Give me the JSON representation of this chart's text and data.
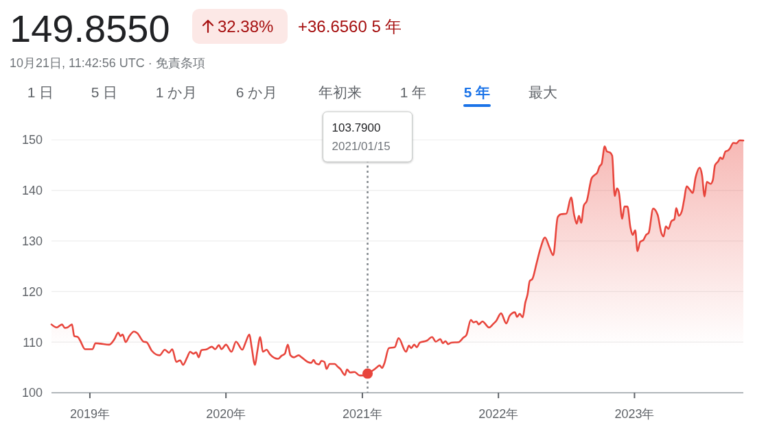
{
  "chart_data": {
    "type": "area",
    "title": "149.8550",
    "subtitle": "10月21日, 11:42:56 UTC · 免責条項",
    "annotations": [
      "32.38%",
      "+36.6560 5 年",
      "1 日",
      "5 日",
      "1 か月",
      "6 か月",
      "年初来",
      "1 年",
      "5 年",
      "最大",
      "103.7900",
      "2021/01/15"
    ],
    "xlim": [
      "2018-09-20",
      "2023-10-20"
    ],
    "xticks": [
      {
        "value": "2019-01-01",
        "label": "2019年"
      },
      {
        "value": "2020-01-01",
        "label": "2020年"
      },
      {
        "value": "2021-01-01",
        "label": "2021年"
      },
      {
        "value": "2022-01-01",
        "label": "2022年"
      },
      {
        "value": "2023-01-01",
        "label": "2023年"
      }
    ],
    "ylim": [
      100,
      150
    ],
    "yticks": [
      100,
      110,
      120,
      130,
      140,
      150
    ],
    "grid": "y",
    "ref_lines": [
      {
        "axis": "x",
        "value": "2021-01-15",
        "color": "#80868b",
        "line_style": "dotted"
      }
    ],
    "series": [
      {
        "color": "#e8453c",
        "x": [
          "2018-09-20",
          "2018-10-04",
          "2018-10-18",
          "2018-10-26",
          "2018-11-02",
          "2018-11-14",
          "2018-11-20",
          "2018-11-30",
          "2018-12-06",
          "2018-12-19",
          "2019-01-08",
          "2019-01-16",
          "2019-01-29",
          "2019-02-22",
          "2019-03-08",
          "2019-03-18",
          "2019-03-24",
          "2019-03-30",
          "2019-04-07",
          "2019-04-17",
          "2019-04-29",
          "2019-05-08",
          "2019-05-25",
          "2019-06-02",
          "2019-06-16",
          "2019-07-07",
          "2019-07-21",
          "2019-08-01",
          "2019-08-10",
          "2019-08-21",
          "2019-08-31",
          "2019-09-08",
          "2019-09-19",
          "2019-09-27",
          "2019-10-06",
          "2019-10-13",
          "2019-10-20",
          "2019-10-27",
          "2019-11-11",
          "2019-11-24",
          "2019-12-03",
          "2019-12-13",
          "2019-12-20",
          "2020-01-01",
          "2020-01-16",
          "2020-01-28",
          "2020-02-14",
          "2020-02-22",
          "2020-03-04",
          "2020-03-10",
          "2020-03-19",
          "2020-03-25",
          "2020-04-02",
          "2020-04-09",
          "2020-04-19",
          "2020-04-28",
          "2020-05-20",
          "2020-05-29",
          "2020-06-07",
          "2020-06-15",
          "2020-06-22",
          "2020-07-01",
          "2020-07-14",
          "2020-07-22",
          "2020-08-07",
          "2020-08-17",
          "2020-08-23",
          "2020-08-29",
          "2020-09-07",
          "2020-09-13",
          "2020-09-21",
          "2020-09-27",
          "2020-10-05",
          "2020-10-19",
          "2020-10-26",
          "2020-11-03",
          "2020-11-15",
          "2020-11-21",
          "2020-11-29",
          "2020-12-11",
          "2020-12-25",
          "2021-01-05",
          "2021-01-15",
          "2021-01-31",
          "2021-02-07",
          "2021-02-16",
          "2021-02-23",
          "2021-03-01",
          "2021-03-13",
          "2021-03-29",
          "2021-04-08",
          "2021-04-28",
          "2021-05-06",
          "2021-05-12",
          "2021-05-20",
          "2021-05-27",
          "2021-06-04",
          "2021-06-23",
          "2021-07-07",
          "2021-07-17",
          "2021-07-29",
          "2021-08-05",
          "2021-08-12",
          "2021-08-19",
          "2021-08-27",
          "2021-09-16",
          "2021-09-29",
          "2021-10-07",
          "2021-10-19",
          "2021-10-26",
          "2021-11-03",
          "2021-11-09",
          "2021-11-19",
          "2021-12-07",
          "2021-12-18",
          "2021-12-26",
          "2022-01-08",
          "2022-01-22",
          "2022-01-31",
          "2022-02-14",
          "2022-02-20",
          "2022-02-27",
          "2022-03-07",
          "2022-03-14",
          "2022-03-20",
          "2022-03-26",
          "2022-04-02",
          "2022-04-13",
          "2022-04-24",
          "2022-05-06",
          "2022-05-17",
          "2022-05-28",
          "2022-06-09",
          "2022-06-18",
          "2022-07-02",
          "2022-07-15",
          "2022-07-23",
          "2022-07-30",
          "2022-08-05",
          "2022-08-11",
          "2022-08-18",
          "2022-08-26",
          "2022-09-08",
          "2022-09-17",
          "2022-09-23",
          "2022-09-29",
          "2022-10-05",
          "2022-10-13",
          "2022-10-19",
          "2022-10-27",
          "2022-11-02",
          "2022-11-09",
          "2022-11-15",
          "2022-11-20",
          "2022-11-29",
          "2022-12-05",
          "2022-12-13",
          "2022-12-21",
          "2022-12-27",
          "2023-01-03",
          "2023-01-09",
          "2023-01-16",
          "2023-01-25",
          "2023-02-01",
          "2023-02-08",
          "2023-02-20",
          "2023-03-04",
          "2023-03-14",
          "2023-03-20",
          "2023-03-26",
          "2023-04-02",
          "2023-04-10",
          "2023-04-18",
          "2023-04-23",
          "2023-04-30",
          "2023-05-08",
          "2023-05-14",
          "2023-05-21",
          "2023-05-29",
          "2023-06-06",
          "2023-06-14",
          "2023-06-25",
          "2023-07-01",
          "2023-07-08",
          "2023-07-14",
          "2023-07-24",
          "2023-07-30",
          "2023-08-05",
          "2023-08-14",
          "2023-08-19",
          "2023-08-25",
          "2023-09-02",
          "2023-09-09",
          "2023-09-14",
          "2023-09-23",
          "2023-10-01",
          "2023-10-10",
          "2023-10-20"
        ],
        "values": [
          113.5,
          112.9,
          113.5,
          112.8,
          112.9,
          113.5,
          111.2,
          111.0,
          110.3,
          108.6,
          108.6,
          109.8,
          109.7,
          109.5,
          110.6,
          111.9,
          111.2,
          111.5,
          110.0,
          111.2,
          112.1,
          111.8,
          110.1,
          110.0,
          108.3,
          107.4,
          108.5,
          107.9,
          108.6,
          106.1,
          106.4,
          105.5,
          107.0,
          108.1,
          107.7,
          108.0,
          107.0,
          108.4,
          108.6,
          109.1,
          108.6,
          109.4,
          108.6,
          109.5,
          108.1,
          110.1,
          108.5,
          109.8,
          111.5,
          109.0,
          105.5,
          108.1,
          111.0,
          108.1,
          108.5,
          107.6,
          106.7,
          107.3,
          107.7,
          109.5,
          107.4,
          107.0,
          107.4,
          107.0,
          106.1,
          105.9,
          106.5,
          105.8,
          105.6,
          106.3,
          106.1,
          104.7,
          105.7,
          105.7,
          105.2,
          104.7,
          103.5,
          104.6,
          104.0,
          104.1,
          103.4,
          103.4,
          103.79,
          104.5,
          104.9,
          105.4,
          104.9,
          105.8,
          108.8,
          109.0,
          110.8,
          108.1,
          109.3,
          108.8,
          109.5,
          109.0,
          109.9,
          110.3,
          111.0,
          110.1,
          110.6,
          109.8,
          110.2,
          109.6,
          109.9,
          110.0,
          110.9,
          111.4,
          114.4,
          113.9,
          114.1,
          113.5,
          114.1,
          112.9,
          113.6,
          114.2,
          115.7,
          113.7,
          115.2,
          115.9,
          115.0,
          115.6,
          114.9,
          117.8,
          119.4,
          122.1,
          122.5,
          125.5,
          128.6,
          130.7,
          128.9,
          127.2,
          134.7,
          135.3,
          135.4,
          138.6,
          135.2,
          133.4,
          135.0,
          133.6,
          137.0,
          137.9,
          142.4,
          143.1,
          143.5,
          144.7,
          145.3,
          148.7,
          147.7,
          147.5,
          146.9,
          138.9,
          140.4,
          139.7,
          134.4,
          136.8,
          136.8,
          132.7,
          131.2,
          132.1,
          128.0,
          129.8,
          130.2,
          131.2,
          131.6,
          136.4,
          135.2,
          131.6,
          130.9,
          132.9,
          132.4,
          133.9,
          134.3,
          136.5,
          135.0,
          135.9,
          138.1,
          140.8,
          140.2,
          139.5,
          142.6,
          144.5,
          143.1,
          138.8,
          141.7,
          141.3,
          142.0,
          145.0,
          145.8,
          146.5,
          146.2,
          147.7,
          147.9,
          148.3,
          149.4,
          149.3,
          149.9,
          149.855
        ]
      },
      {
        "type": "scatter",
        "color": "#e8453c",
        "marker": "circle",
        "x": [
          "2021-01-15"
        ],
        "values": [
          103.79
        ]
      }
    ]
  }
}
